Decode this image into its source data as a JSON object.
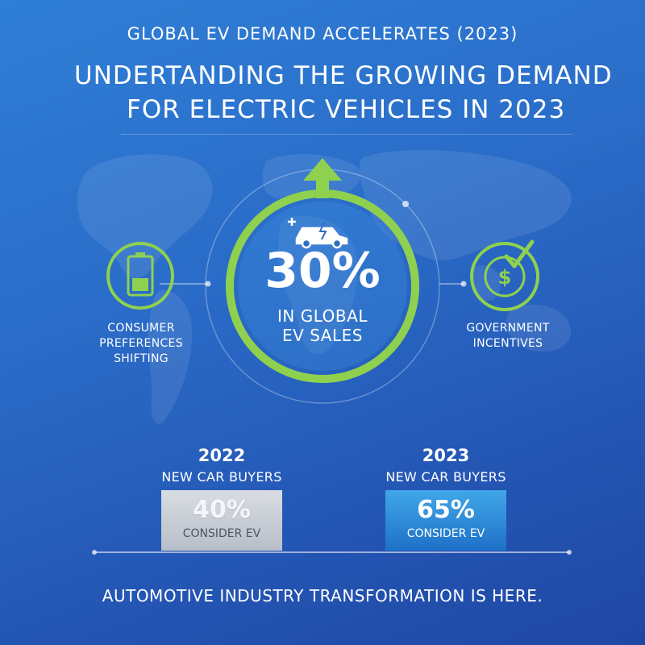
{
  "header": {
    "supertitle": "GLOBAL EV DEMAND ACCELERATES (2023)",
    "title_line1": "UNDERTANDING THE GROWING DEMAND",
    "title_line2": "FOR ELECTRIC VEHICLES IN 2023"
  },
  "center_stat": {
    "value": "30%",
    "line1": "IN GLOBAL",
    "line2": "EV SALES",
    "icon": "ev-car-icon"
  },
  "left_driver": {
    "label_line1": "CONSUMER",
    "label_line2": "PREFERENCES",
    "label_line3": "SHIFTING",
    "icon": "battery-icon"
  },
  "right_driver": {
    "label_line1": "GOVERNMENT",
    "label_line2": "INCENTIVES",
    "icon": "dollar-check-icon"
  },
  "comparison": {
    "y2022": {
      "year": "2022",
      "subtitle": "NEW CAR BUYERS",
      "value": "40%",
      "caption": "CONSIDER EV"
    },
    "y2023": {
      "year": "2023",
      "subtitle": "NEW CAR BUYERS",
      "value": "65%",
      "caption": "CONSIDER EV"
    }
  },
  "footer": {
    "text": "AUTOMOTIVE INDUSTRY TRANSFORMATION IS HERE."
  },
  "colors": {
    "accent_green": "#8fd14f",
    "bar_2022": "#c8cdd5",
    "bar_2023": "#2f8ad8"
  }
}
